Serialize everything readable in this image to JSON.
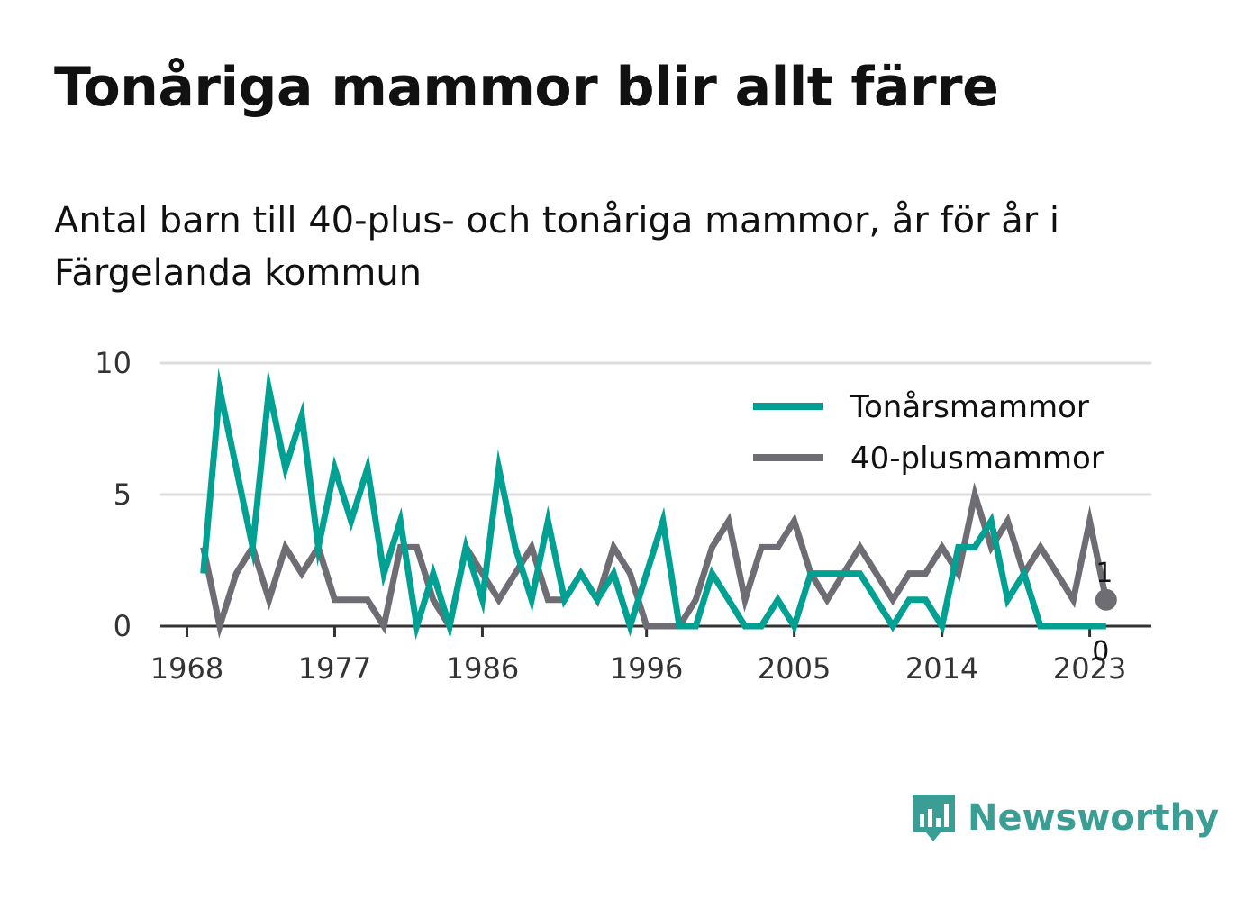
{
  "header": {
    "title": "Tonåriga mammor blir allt färre",
    "subtitle": "Antal barn till 40-plus- och tonåriga mammor, år för år i Färgelanda kommun"
  },
  "brand": {
    "name": "Newsworthy",
    "icon": "newsworthy-logo-icon",
    "color": "#3a9e94"
  },
  "chart_data": {
    "type": "line",
    "title": "Tonåriga mammor blir allt färre",
    "subtitle": "Antal barn till 40-plus- och tonåriga mammor, år för år i Färgelanda kommun",
    "x_tick_labels": [
      "1968",
      "1977",
      "1986",
      "1996",
      "2005",
      "2014",
      "2023"
    ],
    "y_tick_labels": [
      "0",
      "5",
      "10"
    ],
    "ylim": [
      0,
      10
    ],
    "xlim": [
      1968,
      2024
    ],
    "grid": true,
    "legend_position": "top-right",
    "x": [
      1969,
      1970,
      1971,
      1972,
      1973,
      1974,
      1975,
      1976,
      1977,
      1978,
      1979,
      1980,
      1981,
      1982,
      1983,
      1984,
      1985,
      1986,
      1987,
      1988,
      1989,
      1990,
      1991,
      1992,
      1993,
      1994,
      1995,
      1996,
      1997,
      1998,
      1999,
      2000,
      2001,
      2002,
      2003,
      2004,
      2005,
      2006,
      2007,
      2008,
      2009,
      2010,
      2011,
      2012,
      2013,
      2014,
      2015,
      2016,
      2017,
      2018,
      2019,
      2020,
      2021,
      2022,
      2023,
      2024
    ],
    "series": [
      {
        "name": "Tonårsmammor",
        "color": "#00a092",
        "values": [
          2,
          9,
          6,
          3,
          9,
          6,
          8,
          3,
          6,
          4,
          6,
          2,
          4,
          0,
          2,
          0,
          3,
          1,
          6,
          3,
          1,
          4,
          1,
          2,
          1,
          2,
          0,
          2,
          4,
          0,
          0,
          2,
          1,
          0,
          0,
          1,
          0,
          2,
          2,
          2,
          2,
          1,
          0,
          1,
          1,
          0,
          3,
          3,
          4,
          1,
          2,
          0,
          0,
          0,
          0,
          0
        ]
      },
      {
        "name": "40-plusmammor",
        "color": "#6e6d73",
        "values": [
          3,
          0,
          2,
          3,
          1,
          3,
          2,
          3,
          1,
          1,
          1,
          0,
          3,
          3,
          1,
          0,
          3,
          2,
          1,
          2,
          3,
          1,
          1,
          2,
          1,
          3,
          2,
          0,
          0,
          0,
          1,
          3,
          4,
          1,
          3,
          3,
          4,
          2,
          1,
          2,
          3,
          2,
          1,
          2,
          2,
          3,
          2,
          5,
          3,
          4,
          2,
          3,
          2,
          1,
          4,
          1
        ]
      }
    ],
    "end_labels": [
      "1",
      "0"
    ]
  }
}
